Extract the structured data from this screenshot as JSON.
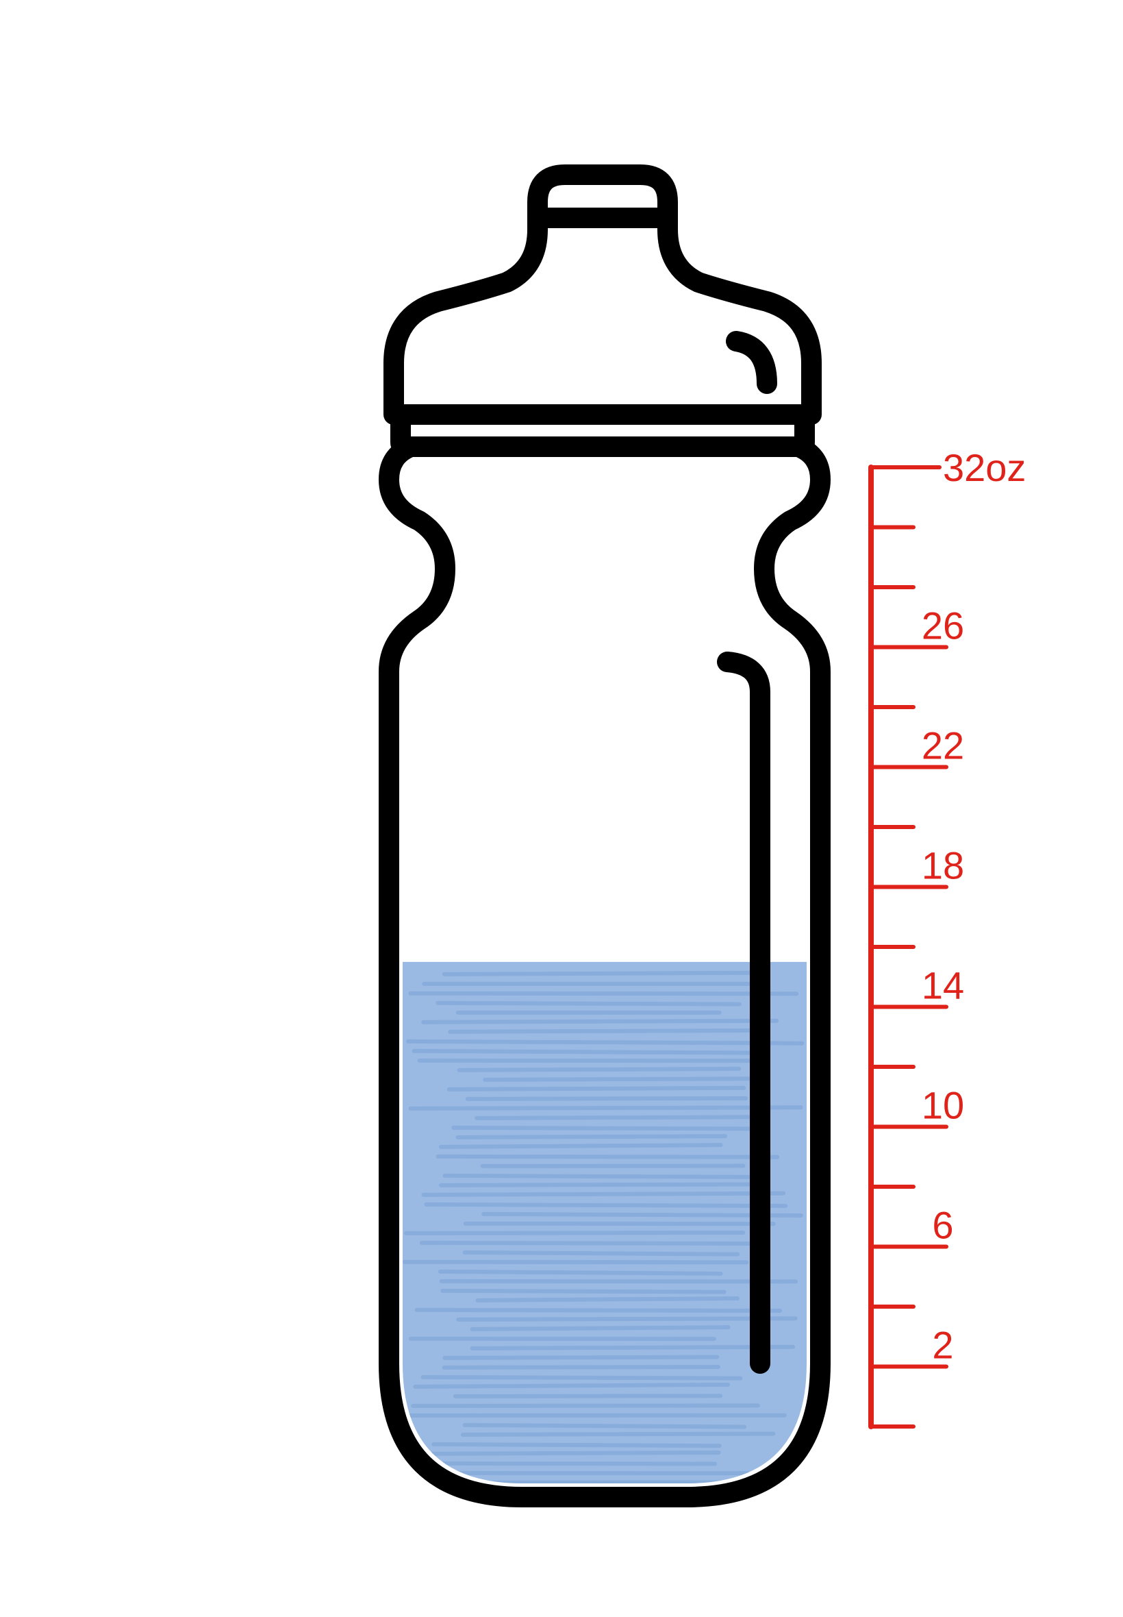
{
  "bottle": {
    "outline_color": "#000000",
    "water_color": "#8fb3e0",
    "water_level": 15.5
  },
  "scale": {
    "color": "#e0231a",
    "min": 0,
    "max": 32,
    "labels": [
      {
        "text": "32oz",
        "value": 32
      },
      {
        "text": "26",
        "value": 26
      },
      {
        "text": "22",
        "value": 22
      },
      {
        "text": "18",
        "value": 18
      },
      {
        "text": "14",
        "value": 14
      },
      {
        "text": "10",
        "value": 10
      },
      {
        "text": "6",
        "value": 6
      },
      {
        "text": "2",
        "value": 2
      }
    ]
  }
}
